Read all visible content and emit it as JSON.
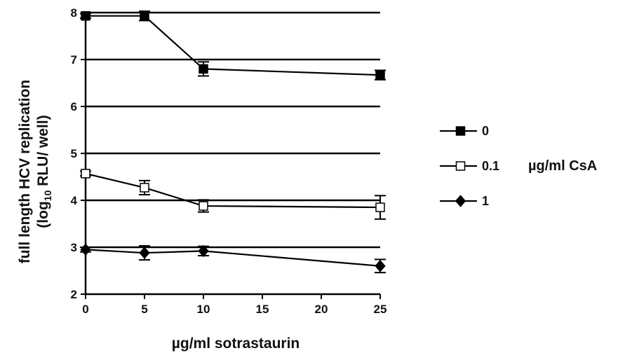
{
  "chart_data": {
    "type": "line",
    "title": "",
    "xlabel": "µg/ml sotrastaurin",
    "ylabel_line1": "full length HCV replication",
    "ylabel_line2_prefix": "(log",
    "ylabel_line2_subscript": "10",
    "ylabel_line2_suffix": " RLU/ well)",
    "xlim": [
      0,
      25
    ],
    "ylim": [
      2,
      8
    ],
    "x_ticks": [
      "0",
      "5",
      "10",
      "15",
      "20",
      "25"
    ],
    "y_ticks": [
      "2",
      "3",
      "4",
      "5",
      "6",
      "7",
      "8"
    ],
    "grid": "horizontal",
    "legend_placement": "right",
    "legend_title": "µg/ml CsA",
    "series": [
      {
        "name": "0",
        "marker": "filled-square",
        "x": [
          0,
          5,
          10,
          25
        ],
        "y": [
          7.93,
          7.93,
          6.8,
          6.67
        ],
        "err": [
          0.05,
          0.1,
          0.15,
          0.1
        ]
      },
      {
        "name": "0.1",
        "marker": "open-square",
        "x": [
          0,
          5,
          10,
          25
        ],
        "y": [
          4.57,
          4.27,
          3.88,
          3.85
        ],
        "err": [
          0.05,
          0.15,
          0.13,
          0.25
        ]
      },
      {
        "name": "1",
        "marker": "filled-diamond",
        "x": [
          0,
          5,
          10,
          25
        ],
        "y": [
          2.95,
          2.88,
          2.92,
          2.6
        ],
        "err": [
          0.05,
          0.15,
          0.1,
          0.14
        ]
      }
    ]
  }
}
